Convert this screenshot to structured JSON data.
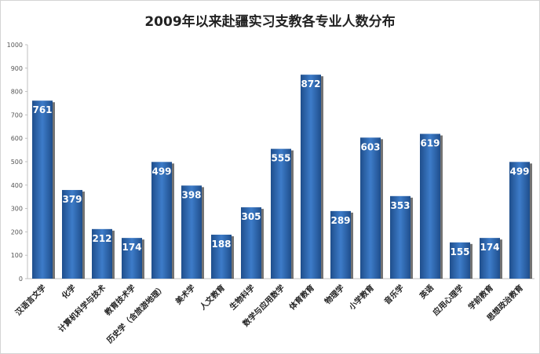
{
  "chart_data": {
    "type": "bar",
    "title": "2009年以来赴疆实习支教各专业人数分布",
    "xlabel": "",
    "ylabel": "",
    "ylim": [
      0,
      1000
    ],
    "yticks": [
      0,
      100,
      200,
      300,
      400,
      500,
      600,
      700,
      800,
      900,
      1000
    ],
    "grid": false,
    "legend": "none",
    "bar_color": "#2f63a6",
    "categories": [
      "汉语言文学",
      "化学",
      "计算机科学与技术",
      "教育技术学",
      "历史学（含旅游地理）",
      "美术学",
      "人文教育",
      "生物科学",
      "数学与应用数学",
      "体育教育",
      "物理学",
      "小学教育",
      "音乐学",
      "英语",
      "应用心理学",
      "学前教育",
      "思想政治教育"
    ],
    "values": [
      761,
      379,
      212,
      174,
      499,
      398,
      188,
      305,
      555,
      872,
      289,
      603,
      353,
      619,
      155,
      174,
      499
    ]
  }
}
